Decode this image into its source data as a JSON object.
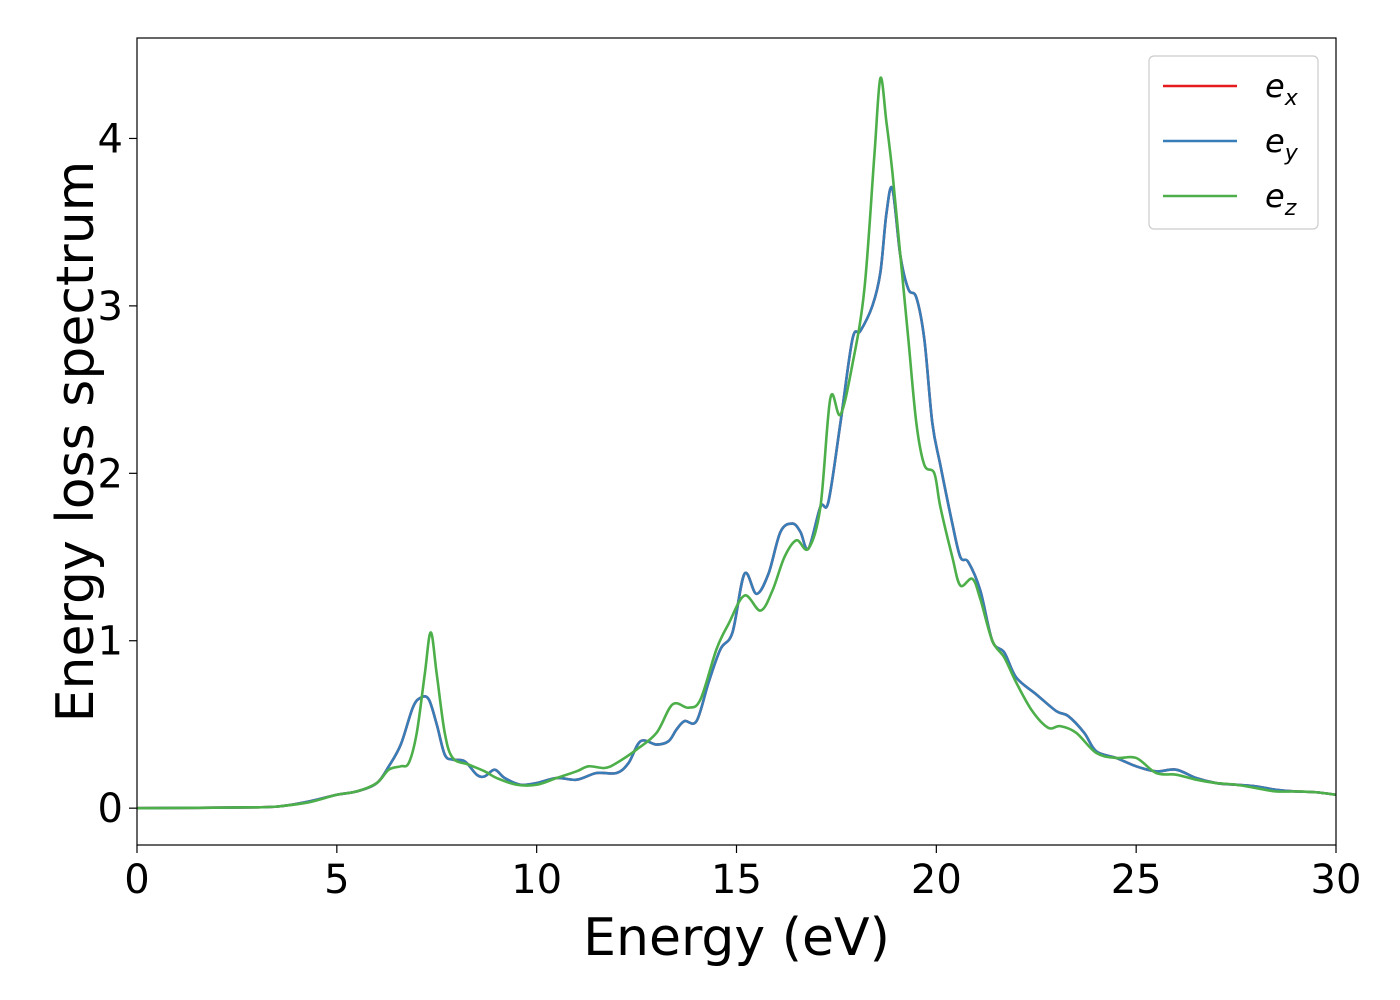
{
  "chart_data": {
    "type": "line",
    "title": "",
    "xlabel": "Energy (eV)",
    "ylabel": "Energy loss spectrum",
    "xlim": [
      0,
      30
    ],
    "ylim": [
      -0.22,
      4.6
    ],
    "xticks": [
      0,
      5,
      10,
      15,
      20,
      25,
      30
    ],
    "xtick_labels": [
      "0",
      "5",
      "10",
      "15",
      "20",
      "25",
      "30"
    ],
    "yticks": [
      0,
      1,
      2,
      3,
      4
    ],
    "ytick_labels": [
      "0",
      "1",
      "2",
      "3",
      "4"
    ],
    "grid": false,
    "legend_position": "top-right",
    "series": [
      {
        "name": "e_x",
        "legend_base": "e",
        "legend_sub": "x",
        "color": "#e41a1c",
        "x": [
          0,
          3,
          3.7,
          4.3,
          5,
          5.5,
          6,
          6.3,
          6.6,
          6.9,
          7.1,
          7.3,
          7.5,
          7.7,
          7.9,
          8.2,
          8.5,
          8.7,
          8.95,
          9.2,
          9.6,
          10,
          10.5,
          11,
          11.5,
          12,
          12.3,
          12.6,
          13,
          13.3,
          13.5,
          13.7,
          14,
          14.3,
          14.6,
          14.9,
          15.2,
          15.5,
          15.8,
          16.1,
          16.4,
          16.6,
          16.8,
          17.1,
          17.3,
          17.6,
          17.9,
          18.1,
          18.4,
          18.6,
          18.75,
          18.9,
          19.1,
          19.3,
          19.5,
          19.7,
          19.9,
          20.1,
          20.4,
          20.6,
          20.8,
          21.1,
          21.4,
          21.7,
          22,
          22.5,
          23,
          23.3,
          23.7,
          24,
          24.5,
          25,
          25.5,
          26,
          26.5,
          27,
          27.5,
          28,
          28.5,
          29,
          29.5,
          30
        ],
        "y": [
          0,
          0.005,
          0.015,
          0.04,
          0.08,
          0.1,
          0.15,
          0.25,
          0.38,
          0.6,
          0.66,
          0.65,
          0.5,
          0.32,
          0.29,
          0.28,
          0.2,
          0.19,
          0.23,
          0.18,
          0.14,
          0.15,
          0.18,
          0.17,
          0.21,
          0.21,
          0.27,
          0.4,
          0.38,
          0.4,
          0.47,
          0.52,
          0.52,
          0.75,
          0.95,
          1.05,
          1.4,
          1.28,
          1.4,
          1.65,
          1.7,
          1.65,
          1.55,
          1.8,
          1.83,
          2.3,
          2.8,
          2.85,
          3.0,
          3.2,
          3.55,
          3.7,
          3.3,
          3.1,
          3.05,
          2.8,
          2.3,
          2.05,
          1.7,
          1.5,
          1.47,
          1.3,
          1.0,
          0.93,
          0.78,
          0.68,
          0.58,
          0.55,
          0.45,
          0.34,
          0.3,
          0.25,
          0.22,
          0.23,
          0.18,
          0.15,
          0.14,
          0.13,
          0.11,
          0.1,
          0.095,
          0.08
        ]
      },
      {
        "name": "e_y",
        "legend_base": "e",
        "legend_sub": "y",
        "color": "#377eb8",
        "x": [
          0,
          3,
          3.7,
          4.3,
          5,
          5.5,
          6,
          6.3,
          6.6,
          6.9,
          7.1,
          7.3,
          7.5,
          7.7,
          7.9,
          8.2,
          8.5,
          8.7,
          8.95,
          9.2,
          9.6,
          10,
          10.5,
          11,
          11.5,
          12,
          12.3,
          12.6,
          13,
          13.3,
          13.5,
          13.7,
          14,
          14.3,
          14.6,
          14.9,
          15.2,
          15.5,
          15.8,
          16.1,
          16.4,
          16.6,
          16.8,
          17.1,
          17.3,
          17.6,
          17.9,
          18.1,
          18.4,
          18.6,
          18.75,
          18.9,
          19.1,
          19.3,
          19.5,
          19.7,
          19.9,
          20.1,
          20.4,
          20.6,
          20.8,
          21.1,
          21.4,
          21.7,
          22,
          22.5,
          23,
          23.3,
          23.7,
          24,
          24.5,
          25,
          25.5,
          26,
          26.5,
          27,
          27.5,
          28,
          28.5,
          29,
          29.5,
          30
        ],
        "y": [
          0,
          0.005,
          0.015,
          0.04,
          0.08,
          0.1,
          0.15,
          0.25,
          0.38,
          0.6,
          0.66,
          0.65,
          0.5,
          0.32,
          0.29,
          0.28,
          0.2,
          0.19,
          0.23,
          0.18,
          0.14,
          0.15,
          0.18,
          0.17,
          0.21,
          0.21,
          0.27,
          0.4,
          0.38,
          0.4,
          0.47,
          0.52,
          0.52,
          0.75,
          0.95,
          1.05,
          1.4,
          1.28,
          1.4,
          1.65,
          1.7,
          1.65,
          1.55,
          1.8,
          1.83,
          2.3,
          2.8,
          2.85,
          3.0,
          3.2,
          3.55,
          3.7,
          3.3,
          3.1,
          3.05,
          2.8,
          2.3,
          2.05,
          1.7,
          1.5,
          1.47,
          1.3,
          1.0,
          0.93,
          0.78,
          0.68,
          0.58,
          0.55,
          0.45,
          0.34,
          0.3,
          0.25,
          0.22,
          0.23,
          0.18,
          0.15,
          0.14,
          0.13,
          0.11,
          0.1,
          0.095,
          0.08
        ]
      },
      {
        "name": "e_z",
        "legend_base": "e",
        "legend_sub": "z",
        "color": "#4daf4a",
        "x": [
          0,
          3,
          3.7,
          4.3,
          5,
          5.5,
          6,
          6.3,
          6.6,
          6.8,
          7.0,
          7.2,
          7.35,
          7.5,
          7.7,
          7.9,
          8.3,
          8.7,
          9.0,
          9.5,
          10,
          10.5,
          11,
          11.3,
          11.7,
          12,
          12.5,
          13,
          13.4,
          13.8,
          14.1,
          14.5,
          14.8,
          15.2,
          15.6,
          15.9,
          16.2,
          16.5,
          16.8,
          17.1,
          17.35,
          17.6,
          17.9,
          18.2,
          18.45,
          18.6,
          18.75,
          18.9,
          19.1,
          19.3,
          19.5,
          19.7,
          19.95,
          20.1,
          20.4,
          20.6,
          20.9,
          21.1,
          21.4,
          21.7,
          22,
          22.4,
          22.8,
          23.1,
          23.5,
          24,
          24.5,
          25,
          25.5,
          26,
          26.5,
          27,
          27.5,
          28,
          28.5,
          29,
          29.5,
          30
        ],
        "y": [
          0,
          0.005,
          0.015,
          0.035,
          0.08,
          0.1,
          0.15,
          0.23,
          0.25,
          0.27,
          0.45,
          0.8,
          1.05,
          0.8,
          0.45,
          0.3,
          0.26,
          0.22,
          0.18,
          0.14,
          0.14,
          0.18,
          0.22,
          0.25,
          0.24,
          0.27,
          0.35,
          0.45,
          0.62,
          0.6,
          0.65,
          0.95,
          1.1,
          1.27,
          1.18,
          1.3,
          1.5,
          1.6,
          1.55,
          1.8,
          2.45,
          2.35,
          2.65,
          3.1,
          3.9,
          4.36,
          4.1,
          3.8,
          3.3,
          2.8,
          2.3,
          2.05,
          2.0,
          1.8,
          1.5,
          1.33,
          1.37,
          1.25,
          1.0,
          0.9,
          0.75,
          0.58,
          0.48,
          0.49,
          0.45,
          0.33,
          0.3,
          0.3,
          0.21,
          0.2,
          0.17,
          0.15,
          0.14,
          0.12,
          0.1,
          0.1,
          0.095,
          0.08
        ]
      }
    ]
  }
}
